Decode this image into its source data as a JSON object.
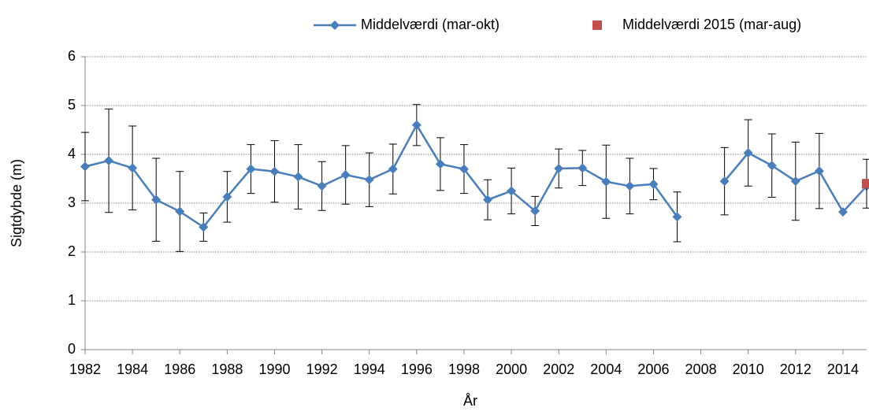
{
  "chart_data": {
    "type": "line",
    "x_label": "År",
    "y_label": "Sigtdybde (m)",
    "x": [
      1982,
      1983,
      1984,
      1985,
      1986,
      1987,
      1988,
      1989,
      1990,
      1991,
      1992,
      1993,
      1994,
      1995,
      1996,
      1997,
      1998,
      1999,
      2000,
      2001,
      2002,
      2003,
      2004,
      2005,
      2006,
      2007,
      2008,
      2009,
      2010,
      2011,
      2012,
      2013,
      2014,
      2015
    ],
    "series": [
      {
        "name": "Middelværdi (mar-okt)",
        "color": "#4a7ebb",
        "marker": "diamond",
        "values": [
          3.75,
          3.87,
          3.72,
          3.07,
          2.83,
          2.51,
          3.13,
          3.7,
          3.65,
          3.54,
          3.35,
          3.58,
          3.48,
          3.7,
          4.6,
          3.8,
          3.7,
          3.07,
          3.25,
          2.84,
          3.71,
          3.72,
          3.44,
          3.35,
          3.39,
          2.72,
          null,
          3.45,
          4.03,
          3.77,
          3.45,
          3.66,
          2.82,
          3.35
        ],
        "errors": [
          0.7,
          1.06,
          0.86,
          0.85,
          0.82,
          0.29,
          0.52,
          0.5,
          0.63,
          0.66,
          0.5,
          0.6,
          0.55,
          0.51,
          0.42,
          0.54,
          0.5,
          0.41,
          0.47,
          0.3,
          0.4,
          0.36,
          0.75,
          0.57,
          0.32,
          0.51,
          null,
          0.69,
          0.68,
          0.65,
          0.8,
          0.77,
          null,
          null
        ]
      },
      {
        "name": "Middelværdi 2015 (mar-aug)",
        "color": "#c0504d",
        "marker": "square",
        "values": [
          null,
          null,
          null,
          null,
          null,
          null,
          null,
          null,
          null,
          null,
          null,
          null,
          null,
          null,
          null,
          null,
          null,
          null,
          null,
          null,
          null,
          null,
          null,
          null,
          null,
          null,
          null,
          null,
          null,
          null,
          null,
          null,
          null,
          3.4
        ],
        "errors": [
          null,
          null,
          null,
          null,
          null,
          null,
          null,
          null,
          null,
          null,
          null,
          null,
          null,
          null,
          null,
          null,
          null,
          null,
          null,
          null,
          null,
          null,
          null,
          null,
          null,
          null,
          null,
          null,
          null,
          null,
          null,
          null,
          null,
          0.5
        ]
      }
    ],
    "xlim": [
      1982,
      2015
    ],
    "xticks": [
      1982,
      1984,
      1986,
      1988,
      1990,
      1992,
      1994,
      1996,
      1998,
      2000,
      2002,
      2004,
      2006,
      2008,
      2010,
      2012,
      2014
    ],
    "ylim": [
      0,
      6
    ],
    "yticks": [
      0,
      1,
      2,
      3,
      4,
      5,
      6
    ],
    "grid": true,
    "legend": "top"
  }
}
